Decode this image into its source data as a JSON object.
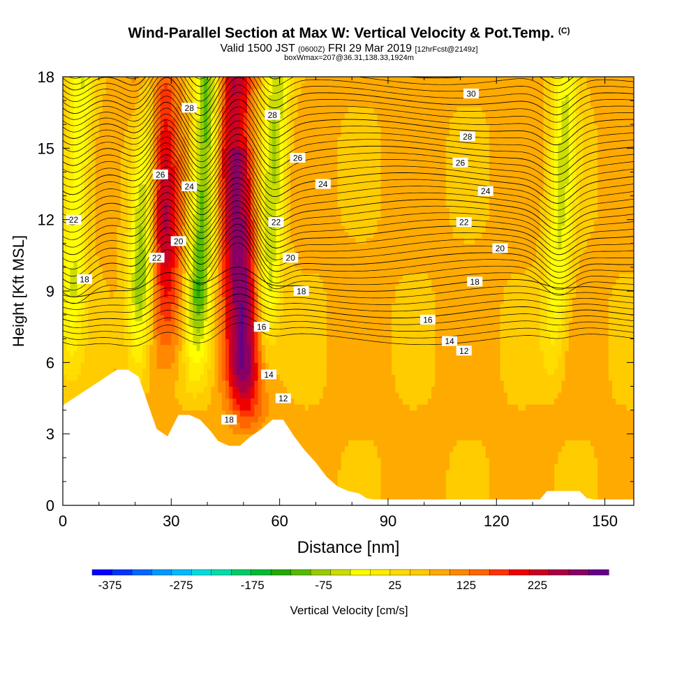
{
  "header": {
    "title": "Wind-Parallel Section at Max W: Vertical Velocity & Pot.Temp.",
    "copyright": "(C)",
    "valid_prefix": "Valid 1500 JST ",
    "utc": "(0600Z)",
    "date": " FRI 29 Mar 2019 ",
    "forecast": "[12hrFcst@2149z]",
    "box_info": "boxWmax=207@36.31,138.33,1924m"
  },
  "chart_data": {
    "type": "heatmap",
    "title": "Wind-Parallel Section at Max W: Vertical Velocity & Pot.Temp.",
    "xlabel": "Distance [nm]",
    "ylabel": "Height [Kft MSL]",
    "xlim": [
      0,
      158
    ],
    "ylim": [
      0,
      18
    ],
    "x_ticks": [
      0,
      30,
      60,
      90,
      120,
      150
    ],
    "y_ticks": [
      0,
      3,
      6,
      9,
      12,
      15,
      18
    ],
    "colorbar": {
      "label": "Vertical Velocity [cm/s]",
      "tick_labels": [
        -375,
        -275,
        -175,
        -75,
        25,
        125,
        225
      ],
      "min": -400,
      "max": 300,
      "step": 25,
      "colors": [
        "#0000ff",
        "#0033ff",
        "#0066ff",
        "#0099ff",
        "#00bbff",
        "#00dddd",
        "#00ddaa",
        "#00cc66",
        "#00bb33",
        "#22aa00",
        "#55bb00",
        "#99cc00",
        "#ccdd00",
        "#ffff00",
        "#ffee00",
        "#ffdd00",
        "#ffcc00",
        "#ffaa00",
        "#ff8800",
        "#ff6600",
        "#ff3300",
        "#ee0000",
        "#cc0022",
        "#aa0044",
        "#880066",
        "#660088"
      ]
    },
    "updraft_cores": [
      {
        "x": 28,
        "peak_cm_s": 200
      },
      {
        "x": 49,
        "peak_cm_s": 207
      }
    ],
    "downdraft_bands": [
      {
        "x": 22,
        "min_cm_s": -150
      },
      {
        "x": 38,
        "min_cm_s": -150
      },
      {
        "x": 57,
        "min_cm_s": -100
      },
      {
        "x": 137,
        "min_cm_s": -75
      },
      {
        "x": 3,
        "min_cm_s": -75
      }
    ],
    "terrain_kft": {
      "x": [
        0,
        3,
        6,
        9,
        12,
        15,
        18,
        21,
        23,
        26,
        29,
        32,
        35,
        38,
        41,
        43,
        46,
        49,
        52,
        55,
        58,
        61,
        64,
        67,
        70,
        73,
        76,
        79,
        82,
        84,
        86,
        132,
        134,
        137,
        140,
        143,
        145,
        147,
        150,
        153,
        158
      ],
      "y": [
        4.2,
        4.5,
        4.8,
        5.1,
        5.4,
        5.7,
        5.7,
        5.4,
        4.5,
        3.2,
        2.9,
        3.8,
        3.8,
        3.6,
        3.1,
        2.7,
        2.5,
        2.5,
        2.9,
        3.2,
        3.6,
        3.6,
        2.9,
        2.3,
        1.8,
        1.2,
        0.8,
        0.6,
        0.5,
        0.3,
        0.25,
        0.25,
        0.6,
        0.6,
        0.6,
        0.6,
        0.3,
        0.25,
        0.25,
        0.25,
        0.25
      ]
    },
    "theta_contours": [
      {
        "level": 12,
        "labels": [
          {
            "x": 111,
            "y": 6.5
          },
          {
            "x": 61,
            "y": 4.5
          }
        ]
      },
      {
        "level": 14,
        "labels": [
          {
            "x": 107,
            "y": 6.9
          },
          {
            "x": 57,
            "y": 5.5
          }
        ]
      },
      {
        "level": 16,
        "labels": [
          {
            "x": 101,
            "y": 7.8
          },
          {
            "x": 55,
            "y": 7.5
          }
        ]
      },
      {
        "level": 18,
        "labels": [
          {
            "x": 6,
            "y": 9.5
          },
          {
            "x": 66,
            "y": 9.0
          },
          {
            "x": 114,
            "y": 9.4
          },
          {
            "x": 46,
            "y": 3.6
          }
        ]
      },
      {
        "level": 20,
        "labels": [
          {
            "x": 32,
            "y": 11.1
          },
          {
            "x": 63,
            "y": 10.4
          },
          {
            "x": 121,
            "y": 10.8
          }
        ]
      },
      {
        "level": 22,
        "labels": [
          {
            "x": 3,
            "y": 12.0
          },
          {
            "x": 26,
            "y": 10.4
          },
          {
            "x": 59,
            "y": 11.9
          },
          {
            "x": 111,
            "y": 11.9
          }
        ]
      },
      {
        "level": 24,
        "labels": [
          {
            "x": 35,
            "y": 13.4
          },
          {
            "x": 72,
            "y": 13.5
          },
          {
            "x": 117,
            "y": 13.2
          }
        ]
      },
      {
        "level": 26,
        "labels": [
          {
            "x": 27,
            "y": 13.9
          },
          {
            "x": 65,
            "y": 14.6
          },
          {
            "x": 110,
            "y": 14.4
          }
        ]
      },
      {
        "level": 28,
        "labels": [
          {
            "x": 35,
            "y": 16.7
          },
          {
            "x": 58,
            "y": 16.4
          },
          {
            "x": 112,
            "y": 15.5
          }
        ]
      },
      {
        "level": 30,
        "labels": [
          {
            "x": 113,
            "y": 17.3
          }
        ]
      }
    ]
  }
}
